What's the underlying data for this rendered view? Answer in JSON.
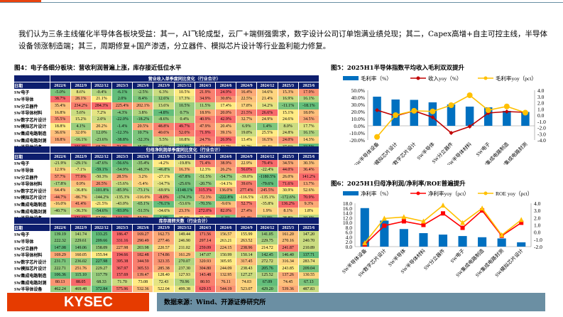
{
  "intro": "我们认为三条主线催化半导体各板块受益：其一，AI飞轮成型，云厂+端侧强需求，数字设计公司订单饱满业绩兑现；其二，Capex高增+自主可控主线，半导体设备领涨制造端；其三，周期修复+国产渗透，分立器件、模拟芯片设计等行业盈利能力修复。",
  "fig4": {
    "title": "图4：电子各细分板块：营收利润普遍上涨，库存接近低位水平",
    "date_label": "日期",
    "columns": [
      "2022/6",
      "2022/9",
      "2022/12",
      "2023/3",
      "2023/6",
      "2023/9",
      "2023/12",
      "2024/3",
      "2024/6",
      "2024/9",
      "2024/12",
      "2025/3",
      "2025/6"
    ],
    "rows": [
      "SW电子",
      "SW半导体",
      "SW分立器件",
      "SW半导体材料",
      "SW数字芯片设计",
      "SW模拟芯片设计",
      "SW集成电路制造",
      "SW集成电路封测",
      "SW半导体设备"
    ],
    "sections": [
      {
        "title": "营业收入单季度同比变化（行业合计）",
        "suffix": "%",
        "values": [
          [
            -5.0,
            8.6,
            -0.4,
            -6.1,
            -2.5,
            6.3,
            10.5,
            21.9,
            24.9,
            16.4,
            14.6,
            15.3,
            17.9
          ],
          [
            38.7,
            28.1,
            21.1,
            2.0,
            8.4,
            12.6,
            17.3,
            34.9,
            30.8,
            22.5,
            21.4,
            16.9,
            16.1
          ],
          [
            35.4,
            234.2,
            284.3,
            225.4,
            202.1,
            13.6,
            10.5,
            11.5,
            17.4,
            17.8,
            14.2,
            -11.1,
            -18.1
          ],
          [
            16.8,
            5.6,
            7.2,
            -4.3,
            3.8,
            -4.8,
            0.7,
            18.9,
            20.0,
            21.5,
            26.6,
            15.1,
            18.0
          ],
          [
            35.5,
            15.2,
            2.0,
            -22.0,
            -18.2,
            -8.6,
            0.4,
            40.9,
            42.9,
            32.7,
            24.9,
            24.6,
            34.5
          ],
          [
            18.8,
            4.1,
            20.2,
            -1.4,
            20.5,
            48.8,
            49.7,
            47.9,
            20.4,
            6.9,
            1.4,
            8.0,
            17.7
          ],
          [
            36.6,
            32.0,
            12.0,
            -12.3,
            10.7,
            40.6,
            52.0,
            71.9,
            39.1,
            19.8,
            25.5,
            24.8,
            16.1
          ],
          [
            18.8,
            -16.1,
            -23.6,
            -38.8,
            -32.3,
            5.5,
            10.8,
            24.7,
            26.9,
            13.4,
            16.5,
            24.0,
            14.3
          ],
          [
            null,
            101.8,
            68.7,
            72.4,
            35.9,
            37.0,
            34.8,
            42.9,
            42.7,
            39.7,
            40.4,
            37.6,
            33.5
          ]
        ]
      },
      {
        "title": "归母净利润单季度同比变化（行业合计）",
        "suffix": "%",
        "values": [
          [
            -21.9,
            -29.1,
            -47.6,
            -56.6,
            -35.4,
            -4.2,
            -19.8,
            71.4,
            38.9,
            22.9,
            79.4,
            34.5,
            30.3
          ],
          [
            12.9,
            -7.1,
            -59.1,
            -54.9,
            -48.3,
            -46.8,
            16.3,
            12.3,
            26.2,
            56.0,
            -22.4,
            44.0,
            36.4
          ],
          [
            57.7,
            77.9,
            -50.3,
            28.5,
            3.2,
            -27.1,
            -67.8,
            -51.5,
            -54.7,
            -39.0,
            -1180.5,
            26.0,
            141.2
          ],
          [
            -17.8,
            0.9,
            20.5,
            -15.6,
            -5.4,
            -14.7,
            -25.6,
            -20.7,
            -14.1,
            39.6,
            -79.6,
            71.6,
            13.7
          ],
          [
            64.4,
            -36.8,
            -101.8,
            -85.9,
            -73.1,
            -69.9,
            -1148.1,
            315.3,
            136.0,
            277.4,
            245.5,
            30.9,
            52.6
          ],
          [
            -44.7,
            -86.7,
            -144.2,
            -135.3,
            -116.0,
            -8.0,
            -174.3,
            -72.3,
            -222.8,
            -116.5,
            -135.1,
            -172.6,
            70.9
          ],
          [
            -16.0,
            41.4,
            -21.5,
            -43.0,
            -65.1,
            -76.1,
            -53.6,
            -70.3,
            -9.6,
            52.7,
            -35.8,
            136.2,
            9.3
          ],
          [
            -40.7,
            -36.3,
            -54.6,
            -93.0,
            -51.5,
            -34.6,
            23.3,
            272.0,
            82.0,
            27.4,
            1.9,
            8.1,
            1.8
          ],
          [
            null,
            171.6,
            57.9,
            144.1,
            59.5,
            -1.0,
            35.6,
            31.2,
            6.3,
            60.4,
            11.9,
            28.8,
            19.4
          ]
        ]
      },
      {
        "title": "库存周转天数（行业合计）",
        "suffix": "",
        "values": [
          [
            139.19,
            141.74,
            133.25,
            186.47,
            169.27,
            162.73,
            149.44,
            171.56,
            156.57,
            155.99,
            141.05,
            161.2,
            147.2
          ],
          [
            222.32,
            229.61,
            209.66,
            331.16,
            290.49,
            277.46,
            246.9,
            297.14,
            263.21,
            263.52,
            229.75,
            270.16,
            240.7
          ],
          [
            147.08,
            149.06,
            158.09,
            227.98,
            203.98,
            220.57,
            211.02,
            259.09,
            224.15,
            238.96,
            214.72,
            241.87,
            210.89
          ],
          [
            169.29,
            160.05,
            155.94,
            194.66,
            182.48,
            174.86,
            161.29,
            147.07,
            150.99,
            150.14,
            142.45,
            146.4,
            137.71
          ],
          [
            231.71,
            236.02,
            227.98,
            395.38,
            344.59,
            323.35,
            270.07,
            320.93,
            305.95,
            317.45,
            272.72,
            316.34,
            283.74
          ],
          [
            222.71,
            251.76,
            229.27,
            367.97,
            305.53,
            285.38,
            237.3,
            304.8,
            244.09,
            238.43,
            205.76,
            243.85,
            209.04
          ],
          [
            106.36,
            115.1,
            117.79,
            157.69,
            139.47,
            128.4,
            127.93,
            143.48,
            132.95,
            127.27,
            125.52,
            137.26,
            130.55
          ],
          [
            80.13,
            88.05,
            68.33,
            71.7,
            73.08,
            72.43,
            70.96,
            80.93,
            76.11,
            74.03,
            67.09,
            74.45,
            67.13
          ],
          [
            462.24,
            469.48,
            372.84,
            575.96,
            532.36,
            522.04,
            499.38,
            629.15,
            544.19,
            523.07,
            429.2,
            539.36,
            487.83
          ]
        ]
      }
    ]
  },
  "chart_data": [
    {
      "type": "bar+line",
      "title": "图5：2025H1半导体指数平均收入毛利双双提升",
      "categories": [
        "SW半导体设备",
        "SW模拟芯片设计",
        "SW数字芯片设计",
        "SW半导体",
        "SW分立器件",
        "SW半导体材料",
        "SW电子",
        "SW集成电路制造",
        "SW集成电路封测"
      ],
      "series": [
        {
          "name": "毛利率（%）",
          "type": "bar",
          "axis": "left",
          "color": "#0070c0",
          "values": [
            41,
            37,
            36.5,
            33,
            30,
            27,
            26,
            21,
            19.5
          ]
        },
        {
          "name": "收入yoy（%）",
          "type": "line",
          "axis": "left",
          "color": "#c00000",
          "marker": "diamond",
          "values": [
            22,
            14,
            21,
            12,
            -10,
            -1,
            18,
            20,
            19
          ]
        },
        {
          "name": "毛利率yoy（pct）",
          "type": "line",
          "axis": "right",
          "color": "#ffc000",
          "marker": "circle",
          "values": [
            -3.5,
            0.0,
            0.7,
            0.6,
            1.6,
            3.2,
            0.8,
            1.4,
            0.4
          ]
        }
      ],
      "left_axis": {
        "min": -20,
        "max": 50,
        "step": 10,
        "ticks": [
          "-20.0%",
          "-10.0%",
          "0.0%",
          "10.0%",
          "20.0%",
          "30.0%",
          "40.0%",
          "50.0%"
        ]
      },
      "right_axis": {
        "min": -4,
        "max": 4,
        "step": 1,
        "ticks": [
          "-4.0",
          "-3.0",
          "-2.0",
          "-1.0",
          "0.0",
          "1.0",
          "2.0",
          "3.0",
          "4.0"
        ]
      },
      "legend": "top"
    },
    {
      "type": "bar+line",
      "title": "图6：2025H1归母净利润/净利率/ROE普遍提升",
      "categories": [
        "SW半导体设备",
        "SW数字芯片设计",
        "SW半导体",
        "SW半导体材料",
        "SW分立器件",
        "SW电子",
        "SW集成电路制造",
        "SW集成电路封测",
        "SW模拟芯片设计"
      ],
      "series": [
        {
          "name": "净利率（%）",
          "type": "bar",
          "axis": "left",
          "color": "#0070c0",
          "values": [
            16.0,
            10.8,
            7.3,
            5.6,
            5.0,
            4.4,
            3.9,
            3.4,
            1.8
          ]
        },
        {
          "name": "净利率yoy（pct）",
          "type": "line",
          "axis": "right",
          "color": "#ff0000",
          "marker": "square",
          "values": [
            -1.7,
            0.9,
            1.5,
            1.0,
            2.6,
            0.6,
            3.0,
            -0.5,
            1.3
          ]
        },
        {
          "name": "ROE yoy（pct）",
          "type": "line",
          "axis": "right",
          "color": "#ffc000",
          "marker": "triangle",
          "values": [
            -1.5,
            1.9,
            2.1,
            1.5,
            3.7,
            1.3,
            3.3,
            -0.4,
            1.7
          ]
        }
      ],
      "left_axis": {
        "min": 0,
        "max": 18,
        "step": 2,
        "ticks": [
          "0.0",
          "2.0",
          "4.0",
          "6.0",
          "8.0",
          "10.0",
          "12.0",
          "14.0",
          "16.0",
          "18.0"
        ]
      },
      "right_axis": {
        "min": -2,
        "max": 4,
        "step": 1,
        "ticks": [
          "-2.0",
          "-1.0",
          "0.0",
          "1.0",
          "2.0",
          "3.0",
          "4.0"
        ]
      },
      "legend": "top"
    }
  ],
  "footer": {
    "logo": "KYSEC",
    "source": "数据来源：Wind、开源证券研究所"
  }
}
